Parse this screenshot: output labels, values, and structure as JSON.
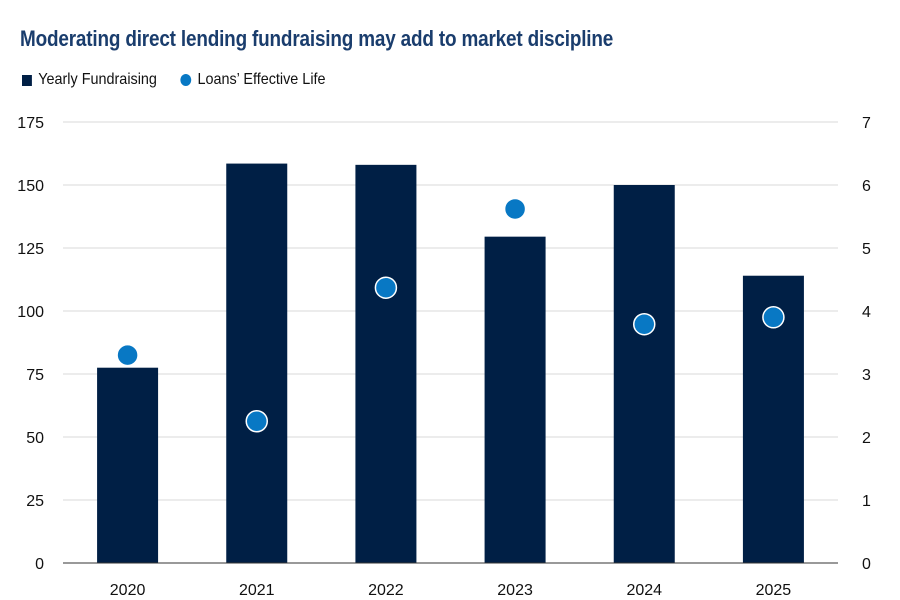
{
  "title": "Moderating direct lending fundraising may add to market discipline",
  "legend": [
    {
      "label": "Yearly Fundraising",
      "color": "#001f45",
      "shape": "square"
    },
    {
      "label": "Loans’ Effective Life",
      "color": "#0878c4",
      "shape": "circle"
    }
  ],
  "chart_data": {
    "type": "bar",
    "categories": [
      "2020",
      "2021",
      "2022",
      "2023",
      "2024",
      "2025"
    ],
    "series": [
      {
        "name": "Yearly Fundraising",
        "type": "bar",
        "axis": "left",
        "color": "#001f45",
        "values": [
          77.5,
          158.5,
          158,
          129.5,
          150,
          114
        ]
      },
      {
        "name": "Loans’ Effective Life",
        "type": "scatter",
        "axis": "right",
        "color": "#0878c4",
        "values": [
          3.3,
          2.25,
          4.37,
          5.62,
          3.79,
          3.9
        ]
      }
    ],
    "y_left": {
      "min": 0,
      "max": 175,
      "ticks": [
        "0",
        "25",
        "50",
        "75",
        "100",
        "125",
        "150",
        "175"
      ]
    },
    "y_right": {
      "min": 0,
      "max": 7,
      "ticks": [
        "0",
        "1",
        "2",
        "3",
        "4",
        "5",
        "6",
        "7"
      ]
    },
    "grid": true,
    "legend_position": "top-left"
  }
}
